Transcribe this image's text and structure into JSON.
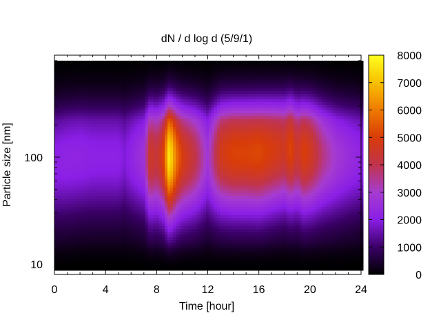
{
  "chart_data": {
    "type": "heatmap",
    "title": "dN / d log d (5/9/1)",
    "xlabel": "Time [hour]",
    "ylabel": "Particle size [nm]",
    "xlim": [
      0,
      24
    ],
    "ylim": [
      8,
      900
    ],
    "y_scale": "log",
    "x_ticks": [
      0,
      4,
      8,
      12,
      16,
      20,
      24
    ],
    "x_tick_labels": [
      "0",
      "4",
      "8",
      "12",
      "16",
      "20",
      "24"
    ],
    "y_ticks": [
      10,
      100
    ],
    "y_tick_labels": [
      "10",
      "100"
    ],
    "colorbar": {
      "min": 0,
      "max": 8000,
      "ticks": [
        0,
        1000,
        2000,
        3000,
        4000,
        5000,
        6000,
        7000,
        8000
      ],
      "tick_labels": [
        "0",
        "1000",
        "2000",
        "3000",
        "4000",
        "5000",
        "6000",
        "7000",
        "8000"
      ],
      "colormap": [
        "#000000",
        "#3a0066",
        "#8a1ee6",
        "#a63cd0",
        "#c0344c",
        "#d83c08",
        "#ee7a00",
        "#f8c000",
        "#ffff20"
      ]
    },
    "time_hours": [
      0,
      1,
      2,
      3,
      4,
      5,
      5.5,
      6,
      7,
      7.5,
      8,
      8.5,
      9,
      9.5,
      10,
      11,
      12,
      13,
      14,
      15,
      16,
      17,
      18,
      18.5,
      19,
      19.5,
      20,
      21,
      22,
      23,
      24
    ],
    "peak_concentration": [
      2100,
      2200,
      2200,
      2100,
      2100,
      2100,
      1900,
      2200,
      2700,
      4600,
      4200,
      5000,
      7800,
      6000,
      4900,
      4100,
      2800,
      4700,
      5100,
      5100,
      5200,
      4900,
      4600,
      5200,
      4400,
      5000,
      4700,
      3600,
      2900,
      2500,
      2200
    ],
    "peak_diameter_nm": [
      90,
      95,
      100,
      100,
      100,
      100,
      100,
      100,
      100,
      100,
      100,
      100,
      100,
      100,
      100,
      100,
      100,
      110,
      110,
      110,
      110,
      115,
      120,
      120,
      115,
      110,
      110,
      105,
      100,
      100,
      100
    ]
  }
}
